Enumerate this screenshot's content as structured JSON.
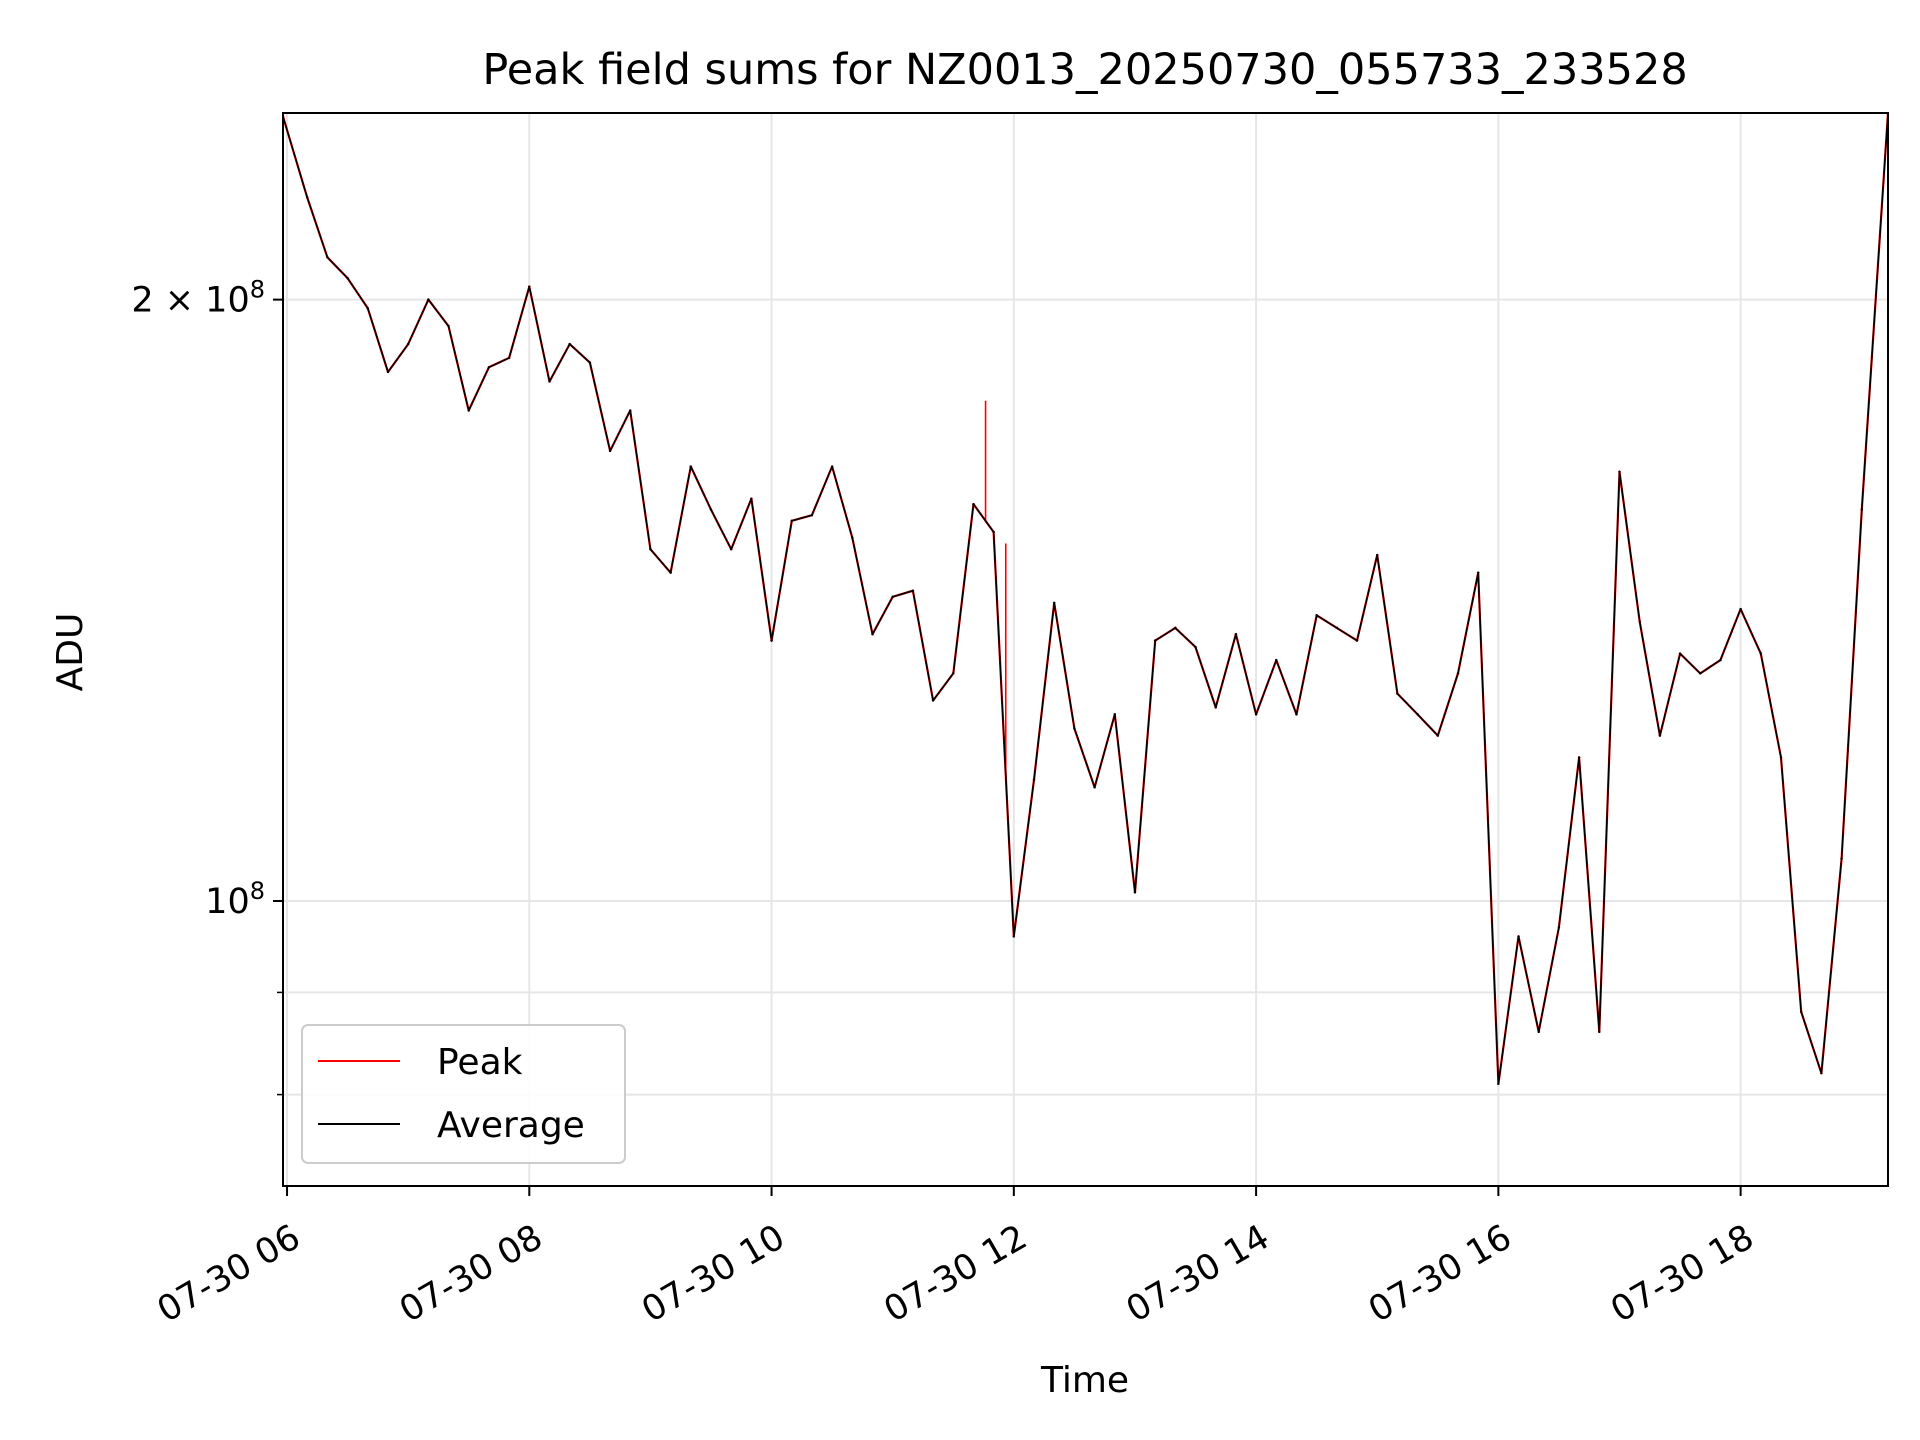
{
  "chart_data": {
    "type": "line",
    "title": "Peak field sums for NZ0013_20250730_055733_233528",
    "xlabel": "Time",
    "ylabel": "ADU",
    "y_scale": "log",
    "ylim": [
      72000000,
      248000000
    ],
    "xlim": [
      "07-30 05:58",
      "07-30 19:13"
    ],
    "grid": true,
    "legend_position": "lower-left",
    "x_ticks": [
      {
        "label": "07-30 06",
        "t": "06:00"
      },
      {
        "label": "07-30 08",
        "t": "08:00"
      },
      {
        "label": "07-30 10",
        "t": "10:00"
      },
      {
        "label": "07-30 12",
        "t": "12:00"
      },
      {
        "label": "07-30 14",
        "t": "14:00"
      },
      {
        "label": "07-30 16",
        "t": "16:00"
      },
      {
        "label": "07-30 18",
        "t": "18:00"
      }
    ],
    "y_ticks": [
      {
        "label": "2 × 10",
        "exp": "8",
        "value": 200000000
      },
      {
        "label": "10",
        "exp": "8",
        "value": 100000000
      }
    ],
    "y_minor_ticks": [
      90000000,
      80000000,
      300000000
    ],
    "x": [
      "05:58",
      "06:10",
      "06:20",
      "06:30",
      "06:40",
      "06:50",
      "07:00",
      "07:10",
      "07:20",
      "07:30",
      "07:40",
      "07:50",
      "08:00",
      "08:10",
      "08:20",
      "08:30",
      "08:40",
      "08:50",
      "09:00",
      "09:10",
      "09:20",
      "09:30",
      "09:40",
      "09:50",
      "10:00",
      "10:10",
      "10:20",
      "10:30",
      "10:40",
      "10:50",
      "11:00",
      "11:10",
      "11:20",
      "11:30",
      "11:40",
      "11:50",
      "12:00",
      "12:10",
      "12:20",
      "12:30",
      "12:40",
      "12:50",
      "13:00",
      "13:10",
      "13:20",
      "13:30",
      "13:40",
      "13:50",
      "14:00",
      "14:10",
      "14:20",
      "14:30",
      "14:40",
      "14:50",
      "15:00",
      "15:10",
      "15:20",
      "15:30",
      "15:40",
      "15:50",
      "16:00",
      "16:10",
      "16:20",
      "16:30",
      "16:40",
      "16:50",
      "17:00",
      "17:10",
      "17:20",
      "17:30",
      "17:40",
      "17:50",
      "18:00",
      "18:10",
      "18:20",
      "18:30",
      "18:40",
      "18:50",
      "19:00",
      "19:13"
    ],
    "series": [
      {
        "name": "Peak",
        "color": "#ff0000",
        "values": [
          247000000,
          225000000,
          210000000,
          205000000,
          198000000,
          184000000,
          190000000,
          200000000,
          194000000,
          176000000,
          185000000,
          187000000,
          203000000,
          182000000,
          190000000,
          186000000,
          168000000,
          176000000,
          150000000,
          146000000,
          165000000,
          157000000,
          150000000,
          159000000,
          135000000,
          155000000,
          156000000,
          165000000,
          152000000,
          136000000,
          142000000,
          143000000,
          126000000,
          130000000,
          158000000,
          153000000,
          96000000,
          115000000,
          141000000,
          122000000,
          114000000,
          124000000,
          101000000,
          135000000,
          137000000,
          134000000,
          125000000,
          136000000,
          124000000,
          132000000,
          124000000,
          139000000,
          137000000,
          135000000,
          149000000,
          127000000,
          124000000,
          121000000,
          130000000,
          146000000,
          81000000,
          96000000,
          86000000,
          97000000,
          118000000,
          86000000,
          164000000,
          138000000,
          121000000,
          133000000,
          130000000,
          132000000,
          140000000,
          133000000,
          118000000,
          88000000,
          82000000,
          105000000,
          157000000,
          248000000
        ],
        "spikes": [
          {
            "t": "11:46",
            "value": 178000000
          },
          {
            "t": "11:56",
            "value": 151000000
          }
        ]
      },
      {
        "name": "Average",
        "color": "#000000",
        "values": [
          247000000,
          225000000,
          210000000,
          205000000,
          198000000,
          184000000,
          190000000,
          200000000,
          194000000,
          176000000,
          185000000,
          187000000,
          203000000,
          182000000,
          190000000,
          186000000,
          168000000,
          176000000,
          150000000,
          146000000,
          165000000,
          157000000,
          150000000,
          159000000,
          135000000,
          155000000,
          156000000,
          165000000,
          152000000,
          136000000,
          142000000,
          143000000,
          126000000,
          130000000,
          158000000,
          153000000,
          96000000,
          115000000,
          141000000,
          122000000,
          114000000,
          124000000,
          101000000,
          135000000,
          137000000,
          134000000,
          125000000,
          136000000,
          124000000,
          132000000,
          124000000,
          139000000,
          137000000,
          135000000,
          149000000,
          127000000,
          124000000,
          121000000,
          130000000,
          146000000,
          81000000,
          96000000,
          86000000,
          97000000,
          118000000,
          86000000,
          164000000,
          138000000,
          121000000,
          133000000,
          130000000,
          132000000,
          140000000,
          133000000,
          118000000,
          88000000,
          82000000,
          105000000,
          157000000,
          248000000
        ]
      }
    ]
  }
}
